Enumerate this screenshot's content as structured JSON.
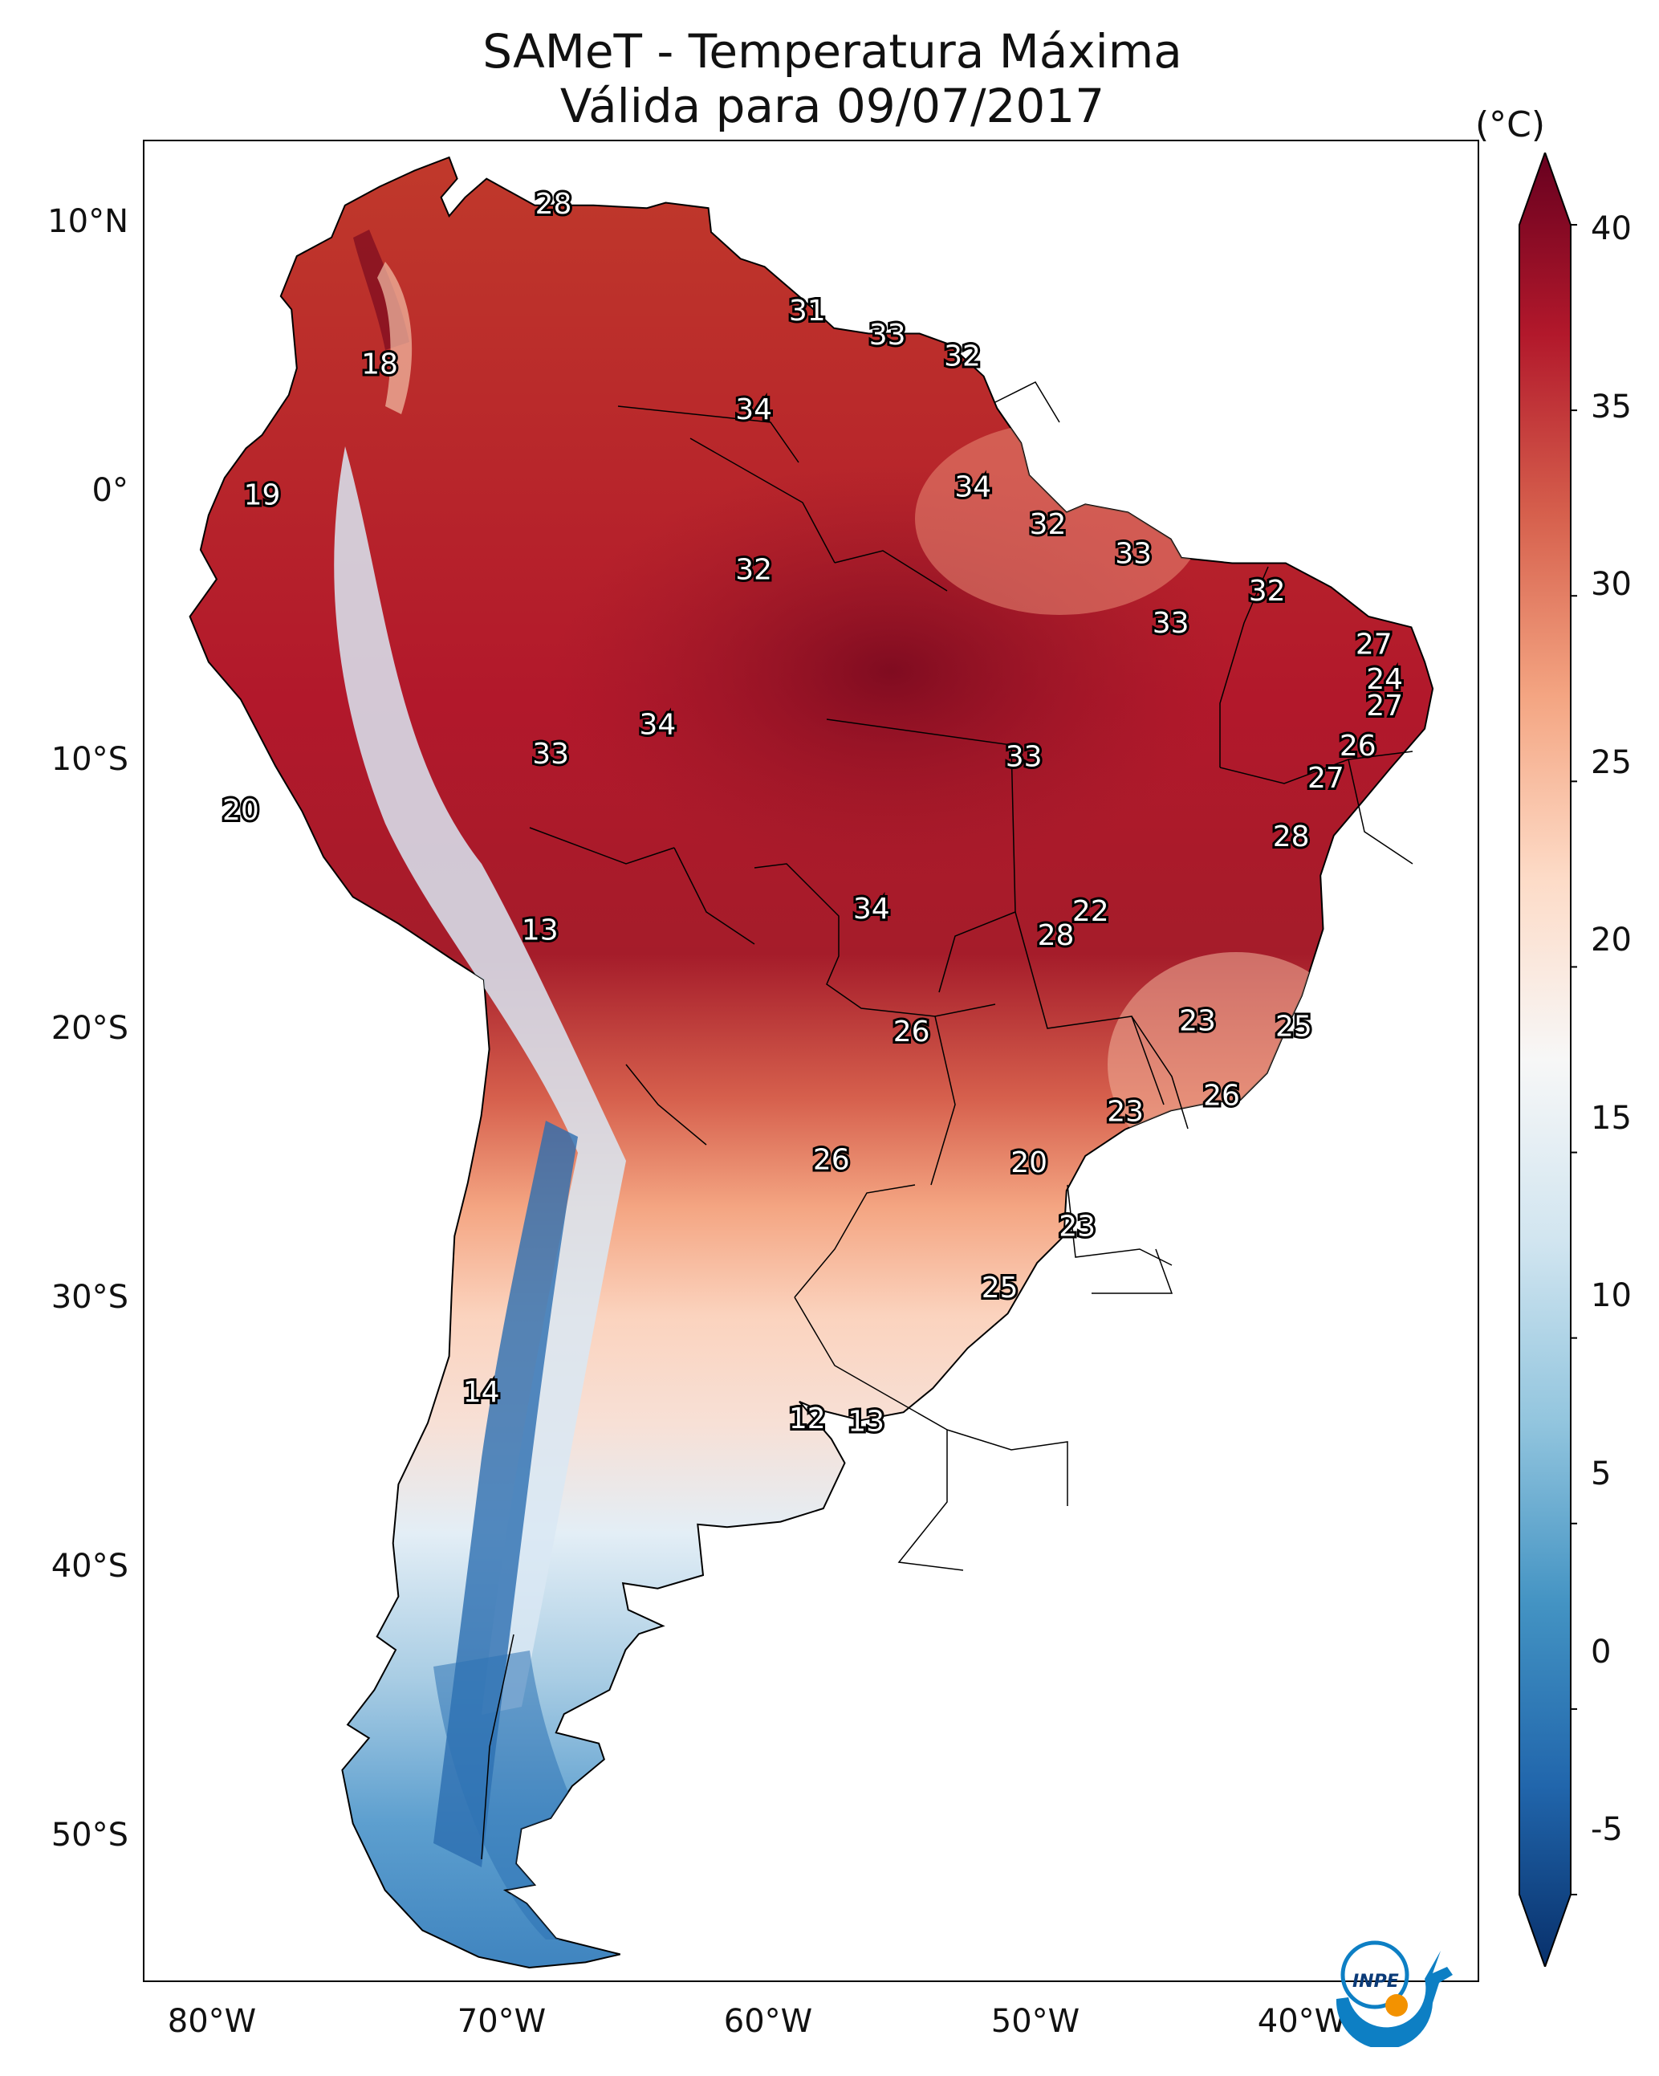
{
  "title": {
    "line1": "SAMeT - Temperatura Máxima",
    "line2": "Válida para 09/07/2017"
  },
  "map": {
    "lon_ticks": [
      "80°W",
      "70°W",
      "60°W",
      "50°W",
      "40°W"
    ],
    "lat_ticks": [
      "10°N",
      "0°",
      "10°S",
      "20°S",
      "30°S",
      "40°S",
      "50°S"
    ],
    "extent": {
      "lon": [
        -83,
        -33
      ],
      "lat": [
        -56,
        13
      ]
    },
    "contour_labels": [
      {
        "text": "28",
        "lon": -67.7,
        "lat": 10.6
      },
      {
        "text": "18",
        "lon": -74.2,
        "lat": 4.6
      },
      {
        "text": "19",
        "lon": -78.6,
        "lat": -0.3
      },
      {
        "text": "31",
        "lon": -58.2,
        "lat": 6.6
      },
      {
        "text": "33",
        "lon": -55.2,
        "lat": 5.7
      },
      {
        "text": "32",
        "lon": -52.4,
        "lat": 4.9
      },
      {
        "text": "34",
        "lon": -60.2,
        "lat": 2.9
      },
      {
        "text": "34",
        "lon": -52.0,
        "lat": 0.0
      },
      {
        "text": "32",
        "lon": -49.2,
        "lat": -1.4
      },
      {
        "text": "32",
        "lon": -60.2,
        "lat": -3.1
      },
      {
        "text": "33",
        "lon": -46.0,
        "lat": -2.5
      },
      {
        "text": "32",
        "lon": -41.0,
        "lat": -3.9
      },
      {
        "text": "33",
        "lon": -44.6,
        "lat": -5.1
      },
      {
        "text": "27",
        "lon": -37.0,
        "lat": -5.9
      },
      {
        "text": "24",
        "lon": -36.6,
        "lat": -7.2
      },
      {
        "text": "27",
        "lon": -36.6,
        "lat": -8.2
      },
      {
        "text": "26",
        "lon": -37.6,
        "lat": -9.7
      },
      {
        "text": "27",
        "lon": -38.8,
        "lat": -10.9
      },
      {
        "text": "28",
        "lon": -40.1,
        "lat": -13.1
      },
      {
        "text": "34",
        "lon": -63.8,
        "lat": -8.9
      },
      {
        "text": "33",
        "lon": -67.8,
        "lat": -10.0
      },
      {
        "text": "33",
        "lon": -50.1,
        "lat": -10.1
      },
      {
        "text": "20",
        "lon": -79.4,
        "lat": -12.1
      },
      {
        "text": "34",
        "lon": -55.8,
        "lat": -15.8
      },
      {
        "text": "22",
        "lon": -47.6,
        "lat": -15.9
      },
      {
        "text": "28",
        "lon": -48.9,
        "lat": -16.8
      },
      {
        "text": "13",
        "lon": -68.2,
        "lat": -16.6
      },
      {
        "text": "26",
        "lon": -54.3,
        "lat": -20.4
      },
      {
        "text": "23",
        "lon": -43.6,
        "lat": -20.0
      },
      {
        "text": "25",
        "lon": -40.0,
        "lat": -20.2
      },
      {
        "text": "23",
        "lon": -46.3,
        "lat": -23.4
      },
      {
        "text": "26",
        "lon": -42.7,
        "lat": -22.8
      },
      {
        "text": "26",
        "lon": -57.3,
        "lat": -25.2
      },
      {
        "text": "20",
        "lon": -49.9,
        "lat": -25.3
      },
      {
        "text": "23",
        "lon": -48.1,
        "lat": -27.7
      },
      {
        "text": "25",
        "lon": -51.0,
        "lat": -30.0
      },
      {
        "text": "14",
        "lon": -70.4,
        "lat": -33.9
      },
      {
        "text": "12",
        "lon": -58.2,
        "lat": -34.9
      },
      {
        "text": "13",
        "lon": -56.0,
        "lat": -35.0
      }
    ]
  },
  "colorbar": {
    "unit": "(°C)",
    "range": [
      -5,
      40
    ],
    "extend": "both",
    "ticks": [
      "40",
      "35",
      "30",
      "25",
      "20",
      "15",
      "10",
      "5",
      "0",
      "-5"
    ],
    "colormap": [
      "#08306b",
      "#2166ac",
      "#4393c3",
      "#92c5de",
      "#d1e5f0",
      "#f7f7f7",
      "#fddbc7",
      "#f4a582",
      "#d6604d",
      "#b2182b",
      "#67001f"
    ]
  },
  "logo": {
    "text": "INPE"
  },
  "colors": {
    "ocean": "#ffffff",
    "border": "#000000"
  }
}
